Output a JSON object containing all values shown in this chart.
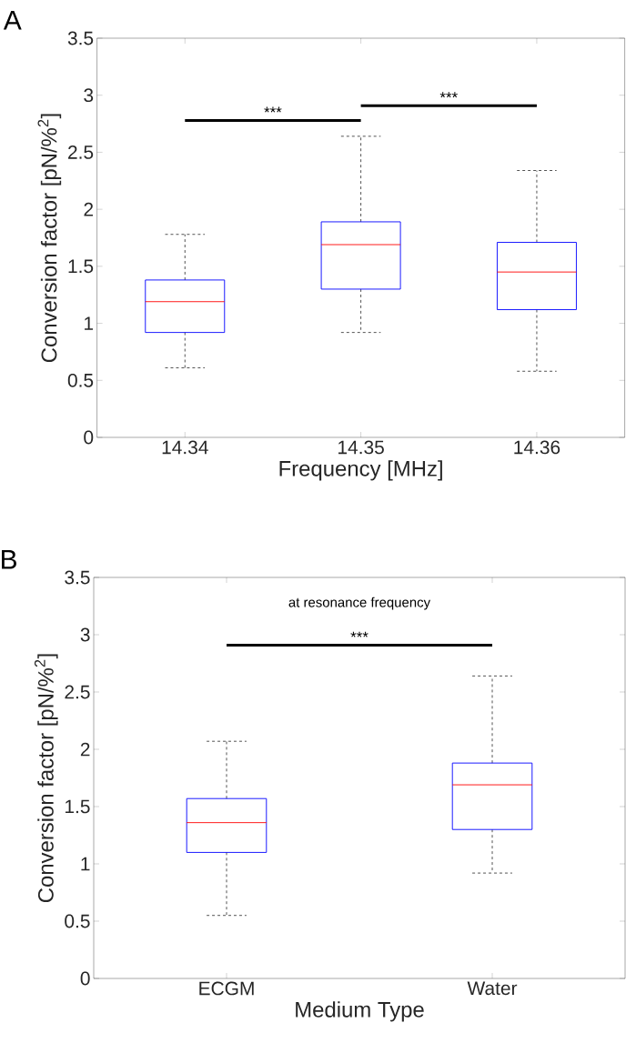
{
  "chart_data": [
    {
      "type": "box",
      "title": "A",
      "xlabel": "Frequency [MHz]",
      "ylabel": "Conversion factor [pN/%$^{2}$]",
      "categories": [
        "14.34",
        "14.35",
        "14.36"
      ],
      "ylim": [
        0,
        3.5
      ],
      "yticks": [
        0,
        0.5,
        1,
        1.5,
        2,
        2.5,
        3,
        3.5
      ],
      "grid": false,
      "annotations": [
        "***",
        "***"
      ],
      "series": [
        {
          "color": "#0000ff",
          "boxes": [
            {
              "low": 0.61,
              "q1": 0.92,
              "median": 1.19,
              "q3": 1.38,
              "high": 1.78
            },
            {
              "low": 0.92,
              "q1": 1.3,
              "median": 1.69,
              "q3": 1.89,
              "high": 2.64
            },
            {
              "low": 0.58,
              "q1": 1.12,
              "median": 1.45,
              "q3": 1.71,
              "high": 2.34
            }
          ]
        }
      ]
    },
    {
      "type": "box",
      "title": "B",
      "subtitle": "at resonance frequency",
      "xlabel": "Medium Type",
      "ylabel": "Conversion factor [pN/%$^{2}$]",
      "categories": [
        "ECGM",
        "Water"
      ],
      "ylim": [
        0,
        3.5
      ],
      "yticks": [
        0,
        0.5,
        1,
        1.5,
        2,
        2.5,
        3,
        3.5
      ],
      "grid": false,
      "annotations": [
        "***"
      ],
      "series": [
        {
          "color": "#0000ff",
          "boxes": [
            {
              "low": 0.55,
              "q1": 1.1,
              "median": 1.36,
              "q3": 1.57,
              "high": 2.07
            },
            {
              "low": 0.92,
              "q1": 1.3,
              "median": 1.69,
              "q3": 1.88,
              "high": 2.64
            }
          ]
        }
      ]
    }
  ]
}
